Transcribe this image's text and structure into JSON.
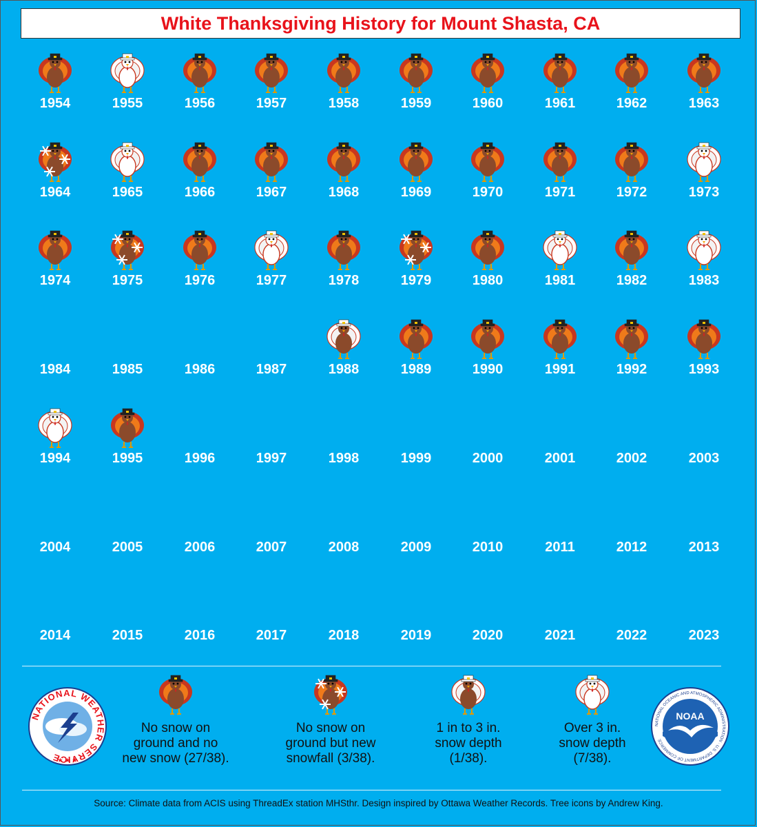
{
  "title": "White Thanksgiving History for Mount Shasta, CA",
  "years": [
    {
      "year": "1954",
      "category": "none"
    },
    {
      "year": "1955",
      "category": "over3"
    },
    {
      "year": "1956",
      "category": "none"
    },
    {
      "year": "1957",
      "category": "none"
    },
    {
      "year": "1958",
      "category": "none"
    },
    {
      "year": "1959",
      "category": "none"
    },
    {
      "year": "1960",
      "category": "none"
    },
    {
      "year": "1961",
      "category": "none"
    },
    {
      "year": "1962",
      "category": "none"
    },
    {
      "year": "1963",
      "category": "none"
    },
    {
      "year": "1964",
      "category": "newsnow"
    },
    {
      "year": "1965",
      "category": "over3"
    },
    {
      "year": "1966",
      "category": "none"
    },
    {
      "year": "1967",
      "category": "none"
    },
    {
      "year": "1968",
      "category": "none"
    },
    {
      "year": "1969",
      "category": "none"
    },
    {
      "year": "1970",
      "category": "none"
    },
    {
      "year": "1971",
      "category": "none"
    },
    {
      "year": "1972",
      "category": "none"
    },
    {
      "year": "1973",
      "category": "over3"
    },
    {
      "year": "1974",
      "category": "none"
    },
    {
      "year": "1975",
      "category": "newsnow"
    },
    {
      "year": "1976",
      "category": "none"
    },
    {
      "year": "1977",
      "category": "over3"
    },
    {
      "year": "1978",
      "category": "none"
    },
    {
      "year": "1979",
      "category": "newsnow"
    },
    {
      "year": "1980",
      "category": "none"
    },
    {
      "year": "1981",
      "category": "over3"
    },
    {
      "year": "1982",
      "category": "none"
    },
    {
      "year": "1983",
      "category": "over3"
    },
    {
      "year": "1984",
      "category": ""
    },
    {
      "year": "1985",
      "category": ""
    },
    {
      "year": "1986",
      "category": ""
    },
    {
      "year": "1987",
      "category": ""
    },
    {
      "year": "1988",
      "category": "1to3"
    },
    {
      "year": "1989",
      "category": "none"
    },
    {
      "year": "1990",
      "category": "none"
    },
    {
      "year": "1991",
      "category": "none"
    },
    {
      "year": "1992",
      "category": "none"
    },
    {
      "year": "1993",
      "category": "none"
    },
    {
      "year": "1994",
      "category": "over3"
    },
    {
      "year": "1995",
      "category": "none"
    },
    {
      "year": "1996",
      "category": ""
    },
    {
      "year": "1997",
      "category": ""
    },
    {
      "year": "1998",
      "category": ""
    },
    {
      "year": "1999",
      "category": ""
    },
    {
      "year": "2000",
      "category": ""
    },
    {
      "year": "2001",
      "category": ""
    },
    {
      "year": "2002",
      "category": ""
    },
    {
      "year": "2003",
      "category": ""
    },
    {
      "year": "2004",
      "category": ""
    },
    {
      "year": "2005",
      "category": ""
    },
    {
      "year": "2006",
      "category": ""
    },
    {
      "year": "2007",
      "category": ""
    },
    {
      "year": "2008",
      "category": ""
    },
    {
      "year": "2009",
      "category": ""
    },
    {
      "year": "2010",
      "category": ""
    },
    {
      "year": "2011",
      "category": ""
    },
    {
      "year": "2012",
      "category": ""
    },
    {
      "year": "2013",
      "category": ""
    },
    {
      "year": "2014",
      "category": ""
    },
    {
      "year": "2015",
      "category": ""
    },
    {
      "year": "2016",
      "category": ""
    },
    {
      "year": "2017",
      "category": ""
    },
    {
      "year": "2018",
      "category": ""
    },
    {
      "year": "2019",
      "category": ""
    },
    {
      "year": "2020",
      "category": ""
    },
    {
      "year": "2021",
      "category": ""
    },
    {
      "year": "2022",
      "category": ""
    },
    {
      "year": "2023",
      "category": ""
    }
  ],
  "legend": [
    {
      "category": "none",
      "lines": [
        "No snow on",
        "ground and no",
        "new snow (27/38)."
      ]
    },
    {
      "category": "newsnow",
      "lines": [
        "No snow on",
        "ground but new",
        "snowfall (3/38)."
      ]
    },
    {
      "category": "1to3",
      "lines": [
        "1 in to 3 in.",
        "snow depth",
        "(1/38)."
      ]
    },
    {
      "category": "over3",
      "lines": [
        "Over 3 in.",
        "snow depth",
        "(7/38)."
      ]
    }
  ],
  "logos": {
    "nws_text": "NATIONAL WEATHER SERVICE",
    "noaa_text": "NOAA",
    "noaa_ring_text": "NATIONAL OCEANIC AND ATMOSPHERIC ADMINISTRATION · U.S. DEPARTMENT OF COMMERCE"
  },
  "footer": "Source: Climate data from ACIS using ThreadEx station MHSthr. Design inspired by Ottawa Weather Records. Tree icons by Andrew King.",
  "colors": {
    "background": "#00aeef",
    "title": "#e8131b",
    "turkey_body": "#8b4a2b",
    "feather_red": "#c8371f",
    "feather_orange": "#ef7a1a"
  }
}
